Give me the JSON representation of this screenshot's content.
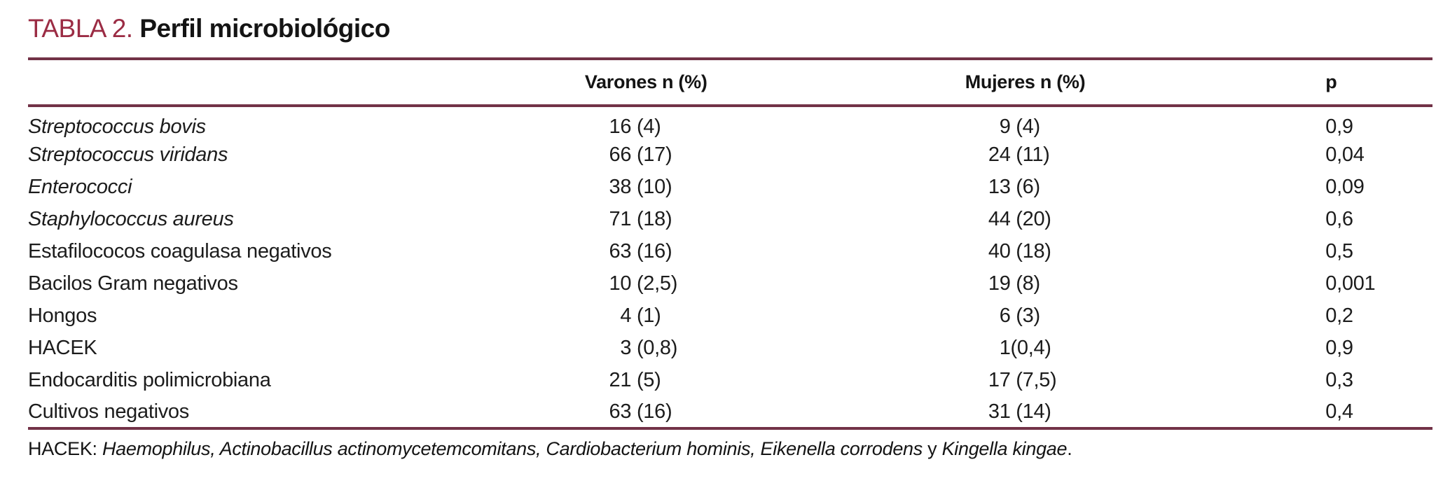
{
  "title": {
    "label": "TABLA 2. ",
    "text": "Perfil microbiológico"
  },
  "colors": {
    "title_accent": "#9b2c44",
    "rule": "#723247",
    "text": "#1c1c1c"
  },
  "table": {
    "headers": {
      "organism": "",
      "varones": "Varones n (%)",
      "mujeres": "Mujeres n (%)",
      "p": "p"
    },
    "rows": [
      {
        "label": "Streptococcus bovis",
        "varones_n": "16",
        "varones_pct": " (4)",
        "mujeres_n": "9",
        "mujeres_pct": " (4)",
        "p": "0,9"
      },
      {
        "label": "Streptococcus viridans",
        "varones_n": "66",
        "varones_pct": " (17)",
        "mujeres_n": "24",
        "mujeres_pct": " (11)",
        "p": "0,04"
      },
      {
        "label": "Enterococci",
        "varones_n": "38",
        "varones_pct": " (10)",
        "mujeres_n": "13",
        "mujeres_pct": " (6)",
        "p": "0,09"
      },
      {
        "label": "Staphylococcus aureus",
        "varones_n": "71",
        "varones_pct": " (18)",
        "mujeres_n": "44",
        "mujeres_pct": " (20)",
        "p": "0,6"
      },
      {
        "label": "Estafilococos coagulasa negativos",
        "varones_n": "63",
        "varones_pct": " (16)",
        "mujeres_n": "40",
        "mujeres_pct": " (18)",
        "p": "0,5"
      },
      {
        "label": "Bacilos Gram negativos",
        "varones_n": "10",
        "varones_pct": " (2,5)",
        "mujeres_n": "19",
        "mujeres_pct": " (8)",
        "p": "0,001"
      },
      {
        "label": "Hongos",
        "varones_n": "4",
        "varones_pct": " (1)",
        "mujeres_n": "6",
        "mujeres_pct": " (3)",
        "p": "0,2"
      },
      {
        "label": "HACEK",
        "varones_n": "3",
        "varones_pct": " (0,8)",
        "mujeres_n": "1",
        "mujeres_pct": "(0,4)",
        "p": "0,9"
      },
      {
        "label": "Endocarditis polimicrobiana",
        "varones_n": "21",
        "varones_pct": " (5)",
        "mujeres_n": "17",
        "mujeres_pct": " (7,5)",
        "p": "0,3"
      },
      {
        "label": "Cultivos negativos",
        "varones_n": "63",
        "varones_pct": " (16)",
        "mujeres_n": "31",
        "mujeres_pct": " (14)",
        "p": "0,4"
      }
    ]
  },
  "footnote": {
    "parts": [
      {
        "text": "HACEK: "
      },
      {
        "text": "Haemophilus, Actinobacillus actinomycetemcomitans, Cardiobacterium hominis, Eikenella corrodens"
      },
      {
        "text": " y "
      },
      {
        "text": "Kingella kingae"
      },
      {
        "text": "."
      }
    ]
  }
}
